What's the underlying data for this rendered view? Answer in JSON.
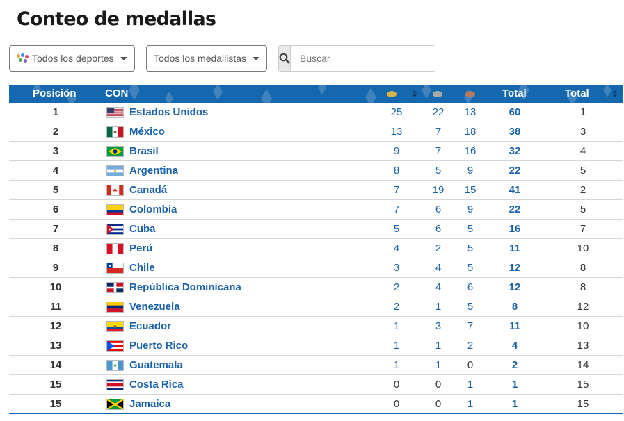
{
  "page": {
    "title": "Conteo de medallas"
  },
  "filters": {
    "sports_label": "Todos los deportes",
    "medalists_label": "Todos los medallistas",
    "search_placeholder": "Buscar"
  },
  "table": {
    "headers": {
      "position": "Posición",
      "con": "CON",
      "total": "Total",
      "total_rank": "Total"
    },
    "medal_colors": {
      "gold": "#d4b24c",
      "silver": "#a9a9a9",
      "bronze": "#b37c5f"
    },
    "accent": "#1567ae",
    "rows": [
      {
        "pos": "1",
        "country": "Estados Unidos",
        "flag": "usa",
        "gold": "25",
        "silver": "22",
        "bronze": "13",
        "total": "60",
        "rank": "1"
      },
      {
        "pos": "2",
        "country": "México",
        "flag": "mex",
        "gold": "13",
        "silver": "7",
        "bronze": "18",
        "total": "38",
        "rank": "3"
      },
      {
        "pos": "3",
        "country": "Brasil",
        "flag": "bra",
        "gold": "9",
        "silver": "7",
        "bronze": "16",
        "total": "32",
        "rank": "4"
      },
      {
        "pos": "4",
        "country": "Argentina",
        "flag": "arg",
        "gold": "8",
        "silver": "5",
        "bronze": "9",
        "total": "22",
        "rank": "5"
      },
      {
        "pos": "5",
        "country": "Canadá",
        "flag": "can",
        "gold": "7",
        "silver": "19",
        "bronze": "15",
        "total": "41",
        "rank": "2"
      },
      {
        "pos": "6",
        "country": "Colombia",
        "flag": "col",
        "gold": "7",
        "silver": "6",
        "bronze": "9",
        "total": "22",
        "rank": "5"
      },
      {
        "pos": "7",
        "country": "Cuba",
        "flag": "cub",
        "gold": "5",
        "silver": "6",
        "bronze": "5",
        "total": "16",
        "rank": "7"
      },
      {
        "pos": "8",
        "country": "Perú",
        "flag": "per",
        "gold": "4",
        "silver": "2",
        "bronze": "5",
        "total": "11",
        "rank": "10"
      },
      {
        "pos": "9",
        "country": "Chile",
        "flag": "chi",
        "gold": "3",
        "silver": "4",
        "bronze": "5",
        "total": "12",
        "rank": "8"
      },
      {
        "pos": "10",
        "country": "República Dominicana",
        "flag": "dom",
        "gold": "2",
        "silver": "4",
        "bronze": "6",
        "total": "12",
        "rank": "8"
      },
      {
        "pos": "11",
        "country": "Venezuela",
        "flag": "ven",
        "gold": "2",
        "silver": "1",
        "bronze": "5",
        "total": "8",
        "rank": "12"
      },
      {
        "pos": "12",
        "country": "Ecuador",
        "flag": "ecu",
        "gold": "1",
        "silver": "3",
        "bronze": "7",
        "total": "11",
        "rank": "10"
      },
      {
        "pos": "13",
        "country": "Puerto Rico",
        "flag": "pur",
        "gold": "1",
        "silver": "1",
        "bronze": "2",
        "total": "4",
        "rank": "13"
      },
      {
        "pos": "14",
        "country": "Guatemala",
        "flag": "gua",
        "gold": "1",
        "silver": "1",
        "bronze": "0",
        "total": "2",
        "rank": "14"
      },
      {
        "pos": "15",
        "country": "Costa Rica",
        "flag": "crc",
        "gold": "0",
        "silver": "0",
        "bronze": "1",
        "total": "1",
        "rank": "15"
      },
      {
        "pos": "15",
        "country": "Jamaica",
        "flag": "jam",
        "gold": "0",
        "silver": "0",
        "bronze": "1",
        "total": "1",
        "rank": "15"
      }
    ]
  }
}
